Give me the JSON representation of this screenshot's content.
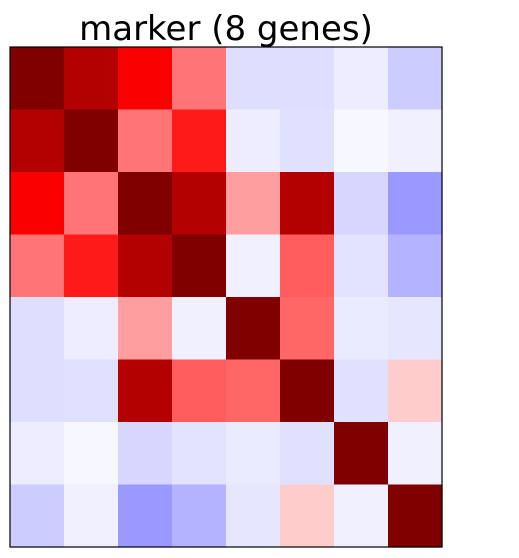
{
  "chart_data": {
    "type": "heatmap",
    "title": "marker (8 genes)",
    "rows": 8,
    "cols": 8,
    "colormap": "bwr",
    "color_range": [
      -1,
      1
    ],
    "axis_ticks": "none",
    "values": [
      [
        1.0,
        0.8,
        0.52,
        0.27,
        -0.13,
        -0.13,
        -0.07,
        -0.2
      ],
      [
        0.8,
        1.0,
        0.27,
        0.45,
        -0.07,
        -0.12,
        -0.03,
        -0.06
      ],
      [
        0.52,
        0.27,
        1.0,
        0.8,
        0.19,
        0.8,
        -0.16,
        -0.4
      ],
      [
        0.27,
        0.45,
        0.8,
        1.0,
        -0.06,
        0.32,
        -0.11,
        -0.3
      ],
      [
        -0.13,
        -0.07,
        0.19,
        -0.06,
        1.0,
        0.3,
        -0.08,
        -0.1
      ],
      [
        -0.13,
        -0.12,
        0.8,
        0.32,
        0.3,
        1.0,
        -0.12,
        0.1
      ],
      [
        -0.07,
        -0.03,
        -0.16,
        -0.11,
        -0.08,
        -0.12,
        1.0,
        -0.06
      ],
      [
        -0.2,
        -0.06,
        -0.4,
        -0.3,
        -0.1,
        0.1,
        -0.06,
        1.0
      ]
    ]
  }
}
